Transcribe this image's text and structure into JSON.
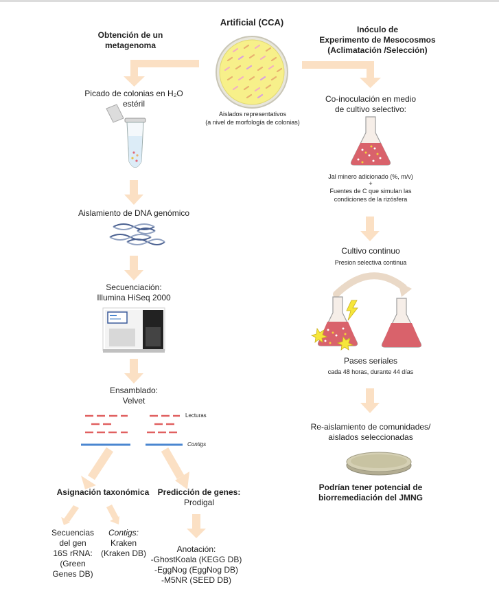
{
  "colors": {
    "arrow": "#fbe0c4",
    "plate_fill": "#f7f08a",
    "flask_liquid": "#d9626b",
    "reads": "#e06060",
    "contigs": "#4a86d0"
  },
  "top": {
    "title": "Artificial (CCA)",
    "plate_caption_1": "Aislados representativos",
    "plate_caption_2": "(a nivel de morfología de colonias)"
  },
  "left": {
    "header_1": "Obtención de un",
    "header_2": "metagenoma",
    "step1_1": "Picado de colonias en H₂O",
    "step1_2": "estéril",
    "step2": "Aislamiento de DNA genómico",
    "step3_1": "Secuenciación:",
    "step3_2": "Illumina HiSeq 2000",
    "step4_1": "Ensamblado:",
    "step4_2": "Velvet",
    "reads_label": "Lecturas",
    "contigs_label": "Contigs",
    "tax_header": "Asignación taxonómica",
    "genes_header": "Predicción de genes:",
    "genes_tool": "Prodigal",
    "tax_a": [
      "Secuencias",
      "del gen",
      "16S rRNA:",
      "(Green",
      "Genes DB)"
    ],
    "tax_b_italic": "Contigs:",
    "tax_b": [
      "Kraken",
      "(Kraken DB)"
    ],
    "annot_title": "Anotación:",
    "annot_items": [
      "-GhostKoala (KEGG DB)",
      "-EggNog (EggNog DB)",
      "-M5NR (SEED DB)"
    ]
  },
  "right": {
    "header_1": "Inóculo de",
    "header_2": "Experimento de Mesocosmos",
    "header_3": "(Aclimatación /Selección)",
    "coinoc_1": "Co-inoculación en medio",
    "coinoc_2": "de cultivo selectivo:",
    "jal": "Jal minero adicionado (%, m/v)",
    "plus": "+",
    "carbon_1": "Fuentes de C que simulan las",
    "carbon_2": "condiciones de la rizósfera",
    "cultivo": "Cultivo continuo",
    "presion": "Presion selectiva continua",
    "pases": "Pases seriales",
    "pases_detail": "cada 48 horas, durante 44 días",
    "reais_1": "Re-aislamiento de comunidades/",
    "reais_2": "aislados seleccionadas",
    "final_1": "Podrían tener potencial de",
    "final_2": "biorremediación del JMNG"
  }
}
